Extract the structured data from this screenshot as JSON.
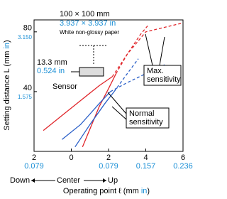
{
  "chart_data": {
    "type": "line",
    "ylabel": [
      "Setting distance L (mm",
      "in",
      ")"
    ],
    "xlabel": [
      "Operating point ℓ (mm",
      "in",
      ")"
    ],
    "x_direction": [
      "Down",
      "Center",
      "Up"
    ],
    "xlim": [
      -2,
      6
    ],
    "xticks": [
      {
        "value": -2,
        "label": "2"
      },
      0,
      2,
      4,
      6
    ],
    "xticks2": [
      {
        "value": -2,
        "label": "0.079"
      },
      {
        "value": 2,
        "label": "0.079"
      },
      {
        "value": 4,
        "label": "0.157"
      },
      {
        "value": 6,
        "label": "0.236"
      }
    ],
    "ylim": [
      0,
      88
    ],
    "yticks": [
      40,
      80
    ],
    "yticks2": [
      {
        "value": 80,
        "label": "3.150"
      },
      {
        "value": 40,
        "label": "1.575"
      }
    ],
    "series": [
      {
        "color": "#e0262b",
        "dashed": false,
        "x": [
          -1.5,
          -0.5,
          0.5,
          1.5,
          2.2
        ],
        "values": [
          14,
          24,
          34,
          44,
          50
        ]
      },
      {
        "color": "#e0262b",
        "dashed": true,
        "x": [
          2.2,
          3,
          4,
          5,
          6
        ],
        "values": [
          50,
          65,
          80,
          83,
          86
        ]
      },
      {
        "color": "#e0262b",
        "dashed": false,
        "x": [
          0.6,
          1,
          1.5,
          2,
          2.4
        ],
        "values": [
          3,
          15,
          30,
          42,
          52
        ]
      },
      {
        "color": "#e0262b",
        "dashed": true,
        "x": [
          2.4,
          3,
          3.7,
          4.1
        ],
        "values": [
          52,
          65,
          78,
          84
        ]
      },
      {
        "color": "#2a5fc8",
        "dashed": false,
        "x": [
          -0.5,
          0.5,
          1.5,
          2.1
        ],
        "values": [
          8,
          18,
          32,
          40
        ]
      },
      {
        "color": "#2a5fc8",
        "dashed": true,
        "x": [
          2.1,
          3,
          4,
          5
        ],
        "values": [
          40,
          46,
          52,
          58
        ]
      },
      {
        "color": "#2a5fc8",
        "dashed": false,
        "x": [
          0.2,
          1,
          1.8,
          2.3
        ],
        "values": [
          3,
          18,
          32,
          40
        ]
      },
      {
        "color": "#2a5fc8",
        "dashed": true,
        "x": [
          2.3,
          3,
          3.6
        ],
        "values": [
          40,
          52,
          62
        ]
      }
    ],
    "annotations": {
      "target": "100 × 100 mm",
      "target_in": "3.937 × 3.937 in",
      "paper": "White non-glossy paper",
      "sensor_mm": "13.3 mm",
      "sensor_in": "0.524 in",
      "sensor": "Sensor",
      "max": [
        "Max.",
        "sensitivity"
      ],
      "normal": [
        "Normal",
        "sensitivity"
      ]
    }
  }
}
